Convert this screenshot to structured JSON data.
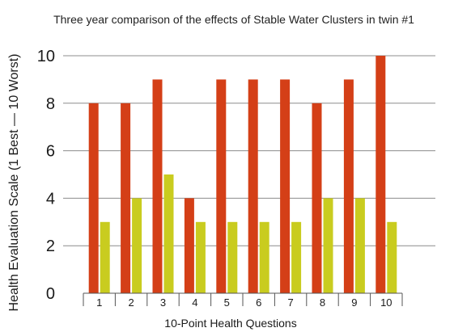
{
  "chart_data": {
    "type": "bar",
    "title": "Three year comparison of the effects of Stable Water Clusters in twin #1",
    "xlabel": "10-Point Health Questions",
    "ylabel": "Health Evaluation Scale (1 Best — 10 Worst)",
    "categories": [
      "1",
      "2",
      "3",
      "4",
      "5",
      "6",
      "7",
      "8",
      "9",
      "10"
    ],
    "series": [
      {
        "values": [
          8,
          8,
          9,
          4,
          9,
          9,
          9,
          8,
          9,
          10
        ],
        "color": "#d43f17"
      },
      {
        "values": [
          3,
          4,
          5,
          3,
          3,
          3,
          3,
          4,
          4,
          3
        ],
        "color": "#c9cc1f"
      }
    ],
    "ylim": [
      0,
      10
    ],
    "yticks": [
      "0",
      "2",
      "4",
      "6",
      "8",
      "10"
    ],
    "grid": true,
    "legend": "none"
  }
}
